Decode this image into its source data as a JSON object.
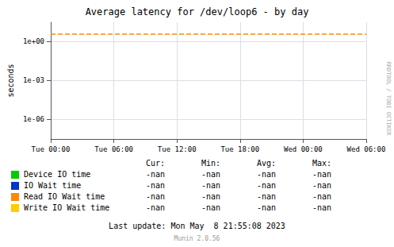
{
  "chart_data": {
    "type": "line",
    "title": "Average latency for /dev/loop6 - by day",
    "y_label": "seconds",
    "categories": [
      "Tue 00:00",
      "Tue 06:00",
      "Tue 12:00",
      "Tue 18:00",
      "Wed 00:00",
      "Wed 06:00"
    ],
    "series": [
      {
        "name": "Device IO time",
        "color": "#00cc00",
        "values": [
          null,
          null,
          null,
          null,
          null,
          null
        ]
      },
      {
        "name": "IO Wait time",
        "color": "#0033cc",
        "values": [
          null,
          null,
          null,
          null,
          null,
          null
        ]
      },
      {
        "name": "Read IO Wait time",
        "color": "#ff8800",
        "values": [
          null,
          null,
          null,
          null,
          null,
          null
        ]
      },
      {
        "name": "Write IO Wait time",
        "color": "#ffcc00",
        "values": [
          null,
          null,
          null,
          null,
          null,
          null
        ]
      }
    ],
    "log": "y",
    "ylim": [
      3e-08,
      30.0
    ],
    "yticks": [
      {
        "value": 1e-06,
        "label": "1e-06"
      },
      {
        "value": 0.001,
        "label": "1e-03"
      },
      {
        "value": 1,
        "label": "1e+00"
      }
    ],
    "grid": true,
    "reference_line": {
      "value": 3.5,
      "color": "#ff8800",
      "line_style": "dashed"
    },
    "table": {
      "header": [
        "Cur:",
        "Min:",
        "Avg:",
        "Max:"
      ],
      "rows": [
        [
          "-nan",
          "-nan",
          "-nan",
          "-nan"
        ],
        [
          "-nan",
          "-nan",
          "-nan",
          "-nan"
        ],
        [
          "-nan",
          "-nan",
          "-nan",
          "-nan"
        ],
        [
          "-nan",
          "-nan",
          "-nan",
          "-nan"
        ]
      ]
    },
    "footer": "Last update: Mon May  8 21:55:08 2023",
    "annotations": [
      "Munin 2.0.56",
      "RRDTOOL / TOBI OETIKER"
    ]
  }
}
